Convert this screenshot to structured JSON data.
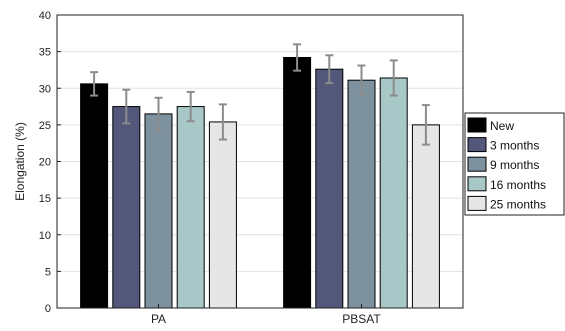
{
  "chart_data": {
    "type": "bar",
    "title": "",
    "xlabel": "",
    "ylabel": "Elongation (%)",
    "ylim": [
      0,
      40
    ],
    "yticks": [
      0,
      5,
      10,
      15,
      20,
      25,
      30,
      35,
      40
    ],
    "grid": true,
    "legend_position": "right",
    "categories": [
      "PA",
      "PBSAT"
    ],
    "series": [
      {
        "name": "New",
        "color": "#000000",
        "values": [
          30.6,
          34.2
        ],
        "errors": [
          1.6,
          1.8
        ]
      },
      {
        "name": "3 months",
        "color": "#53577a",
        "values": [
          27.5,
          32.6
        ],
        "errors": [
          2.3,
          1.9
        ]
      },
      {
        "name": "9 months",
        "color": "#7d929e",
        "values": [
          26.5,
          31.1
        ],
        "errors": [
          2.2,
          2.0
        ]
      },
      {
        "name": "16 months",
        "color": "#a8c8c8",
        "values": [
          27.5,
          31.4
        ],
        "errors": [
          2.0,
          2.4
        ]
      },
      {
        "name": "25 months",
        "color": "#e6e6e6",
        "values": [
          25.4,
          25.0
        ],
        "errors": [
          2.4,
          2.7
        ]
      }
    ]
  }
}
